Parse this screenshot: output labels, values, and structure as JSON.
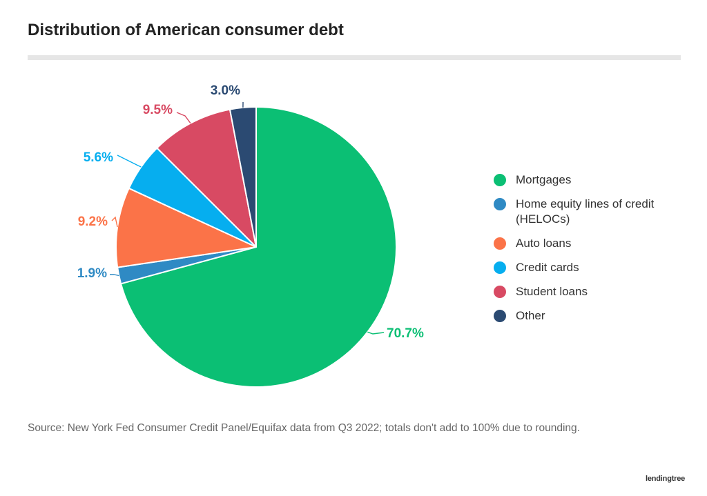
{
  "title": "Distribution of American consumer debt",
  "source": "Source: New York Fed Consumer Credit Panel/Equifax data from Q3 2022; totals don't add to 100% due to rounding.",
  "brand": "lendingtree",
  "chart_data": {
    "type": "pie",
    "title": "Distribution of American consumer debt",
    "legend_position": "right",
    "slices": [
      {
        "name": "Mortgages",
        "value": 70.7,
        "label": "70.7%",
        "color": "#0bbf74"
      },
      {
        "name": "Home equity lines of credit (HELOCs)",
        "value": 1.9,
        "label": "1.9%",
        "color": "#2f8ac4"
      },
      {
        "name": "Auto loans",
        "value": 9.2,
        "label": "9.2%",
        "color": "#fb7348"
      },
      {
        "name": "Credit cards",
        "value": 5.6,
        "label": "5.6%",
        "color": "#06aeef"
      },
      {
        "name": "Student loans",
        "value": 9.5,
        "label": "9.5%",
        "color": "#d84a63"
      },
      {
        "name": "Other",
        "value": 3.0,
        "label": "3.0%",
        "color": "#2b4a72"
      }
    ]
  }
}
